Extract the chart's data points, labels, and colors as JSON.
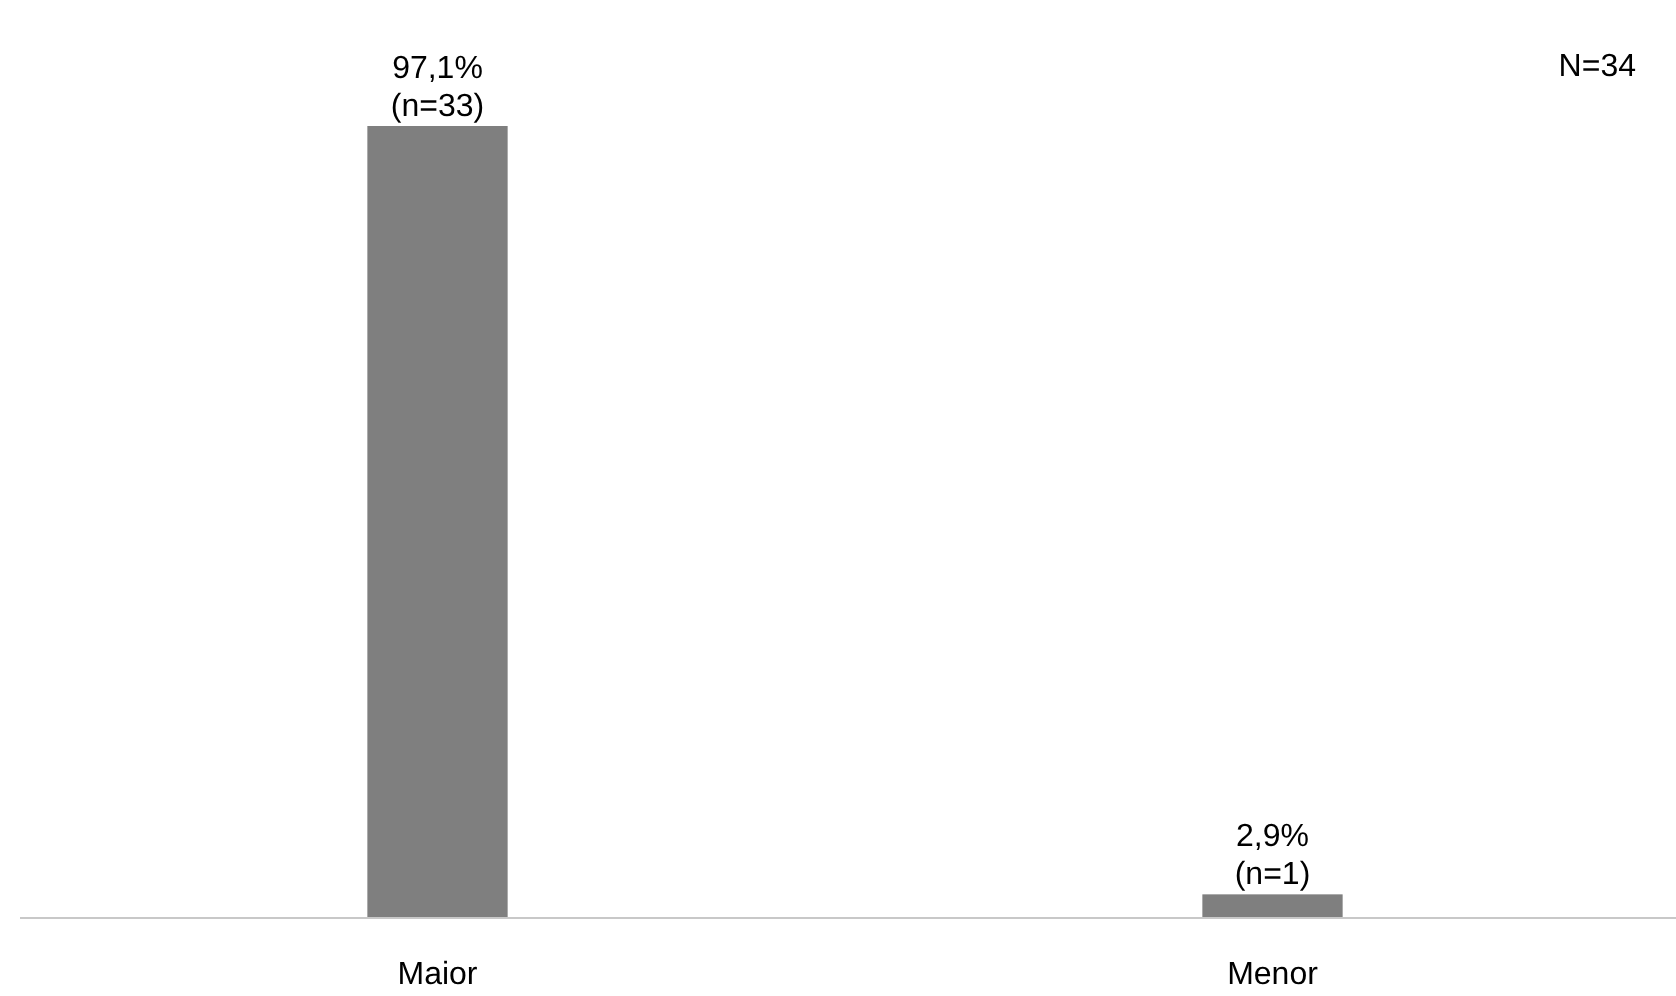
{
  "chart_data": {
    "type": "bar",
    "categories": [
      "Maior",
      "Menor"
    ],
    "values": [
      97.1,
      2.9
    ],
    "color": "#7f7f7f",
    "value_labels": [
      "97,1%\n(n=33)",
      "2,9%\n(n=1)"
    ],
    "annotations": [
      "N=34"
    ]
  }
}
